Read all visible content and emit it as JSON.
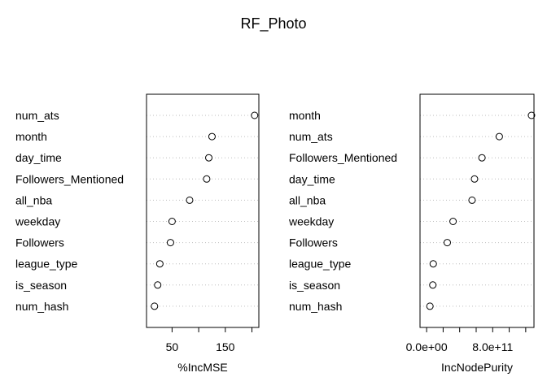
{
  "title": "RF_Photo",
  "chart_data": [
    {
      "type": "scatter",
      "title": "",
      "xlabel": "%IncMSE",
      "ylabel": "",
      "grid": false,
      "xlim": [
        2,
        213
      ],
      "xticks": [
        {
          "value": 50,
          "label": "50"
        },
        {
          "value": 100,
          "label": ""
        },
        {
          "value": 150,
          "label": "150"
        },
        {
          "value": 200,
          "label": ""
        }
      ],
      "categories": [
        "num_ats",
        "month",
        "day_time",
        "Followers_Mentioned",
        "all_nba",
        "weekday",
        "Followers",
        "league_type",
        "is_season",
        "num_hash"
      ],
      "values": [
        205,
        125,
        119,
        115,
        83,
        50,
        47,
        27,
        23,
        17
      ]
    },
    {
      "type": "scatter",
      "title": "",
      "xlabel": "IncNodePurity",
      "ylabel": "",
      "grid": false,
      "xlim": [
        -80000000000.0,
        1300000000000.0
      ],
      "xticks": [
        {
          "value": 0,
          "label": "0.0e+00"
        },
        {
          "value": 200000000000.0,
          "label": ""
        },
        {
          "value": 400000000000.0,
          "label": ""
        },
        {
          "value": 600000000000.0,
          "label": ""
        },
        {
          "value": 800000000000.0,
          "label": "8.0e+11"
        },
        {
          "value": 1000000000000.0,
          "label": ""
        },
        {
          "value": 1200000000000.0,
          "label": ""
        }
      ],
      "categories": [
        "month",
        "num_ats",
        "Followers_Mentioned",
        "day_time",
        "all_nba",
        "weekday",
        "Followers",
        "league_type",
        "is_season",
        "num_hash"
      ],
      "values": [
        1270000000000.0,
        880000000000.0,
        670000000000.0,
        580000000000.0,
        550000000000.0,
        320000000000.0,
        250000000000.0,
        80000000000.0,
        75000000000.0,
        40000000000.0
      ]
    }
  ]
}
